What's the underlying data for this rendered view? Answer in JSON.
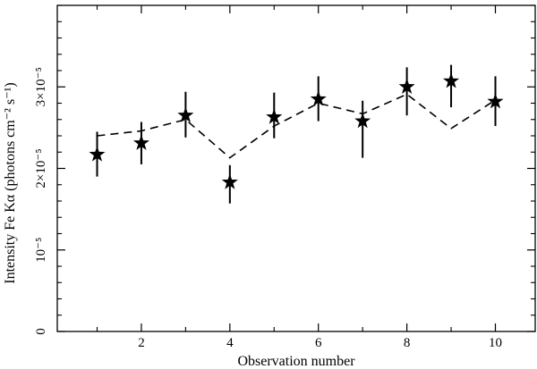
{
  "chart_data": {
    "type": "scatter",
    "title": "",
    "xlabel": "Observation number",
    "ylabel": "Intensity Fe Kα (photons cm⁻² s⁻¹)",
    "xlim": [
      0.1,
      10.9
    ],
    "ylim": [
      0,
      4e-05
    ],
    "x_major_ticks": [
      2,
      4,
      6,
      8,
      10
    ],
    "x_tick_labels": [
      "2",
      "4",
      "6",
      "8",
      "10"
    ],
    "x_minor_ticks": [
      1,
      3,
      5,
      7,
      9
    ],
    "y_major_ticks": [
      0,
      1e-05,
      2e-05,
      3e-05
    ],
    "y_tick_labels": [
      "0",
      "10⁻⁵",
      "2×10⁻⁵",
      "3×10⁻⁵"
    ],
    "y_minor_step": 2e-06,
    "grid": false,
    "series": [
      {
        "style": "stars-with-error-bars",
        "x": [
          1,
          2,
          3,
          4,
          5,
          6,
          7,
          8,
          9,
          10
        ],
        "y": [
          2.17e-05,
          2.31e-05,
          2.65e-05,
          1.83e-05,
          2.63e-05,
          2.85e-05,
          2.58e-05,
          3e-05,
          3.07e-05,
          2.82e-05
        ],
        "y_err_low": [
          1.9e-05,
          2.05e-05,
          2.38e-05,
          1.57e-05,
          2.37e-05,
          2.58e-05,
          2.13e-05,
          2.65e-05,
          2.75e-05,
          2.52e-05
        ],
        "y_err_high": [
          2.45e-05,
          2.57e-05,
          2.94e-05,
          2.04e-05,
          2.93e-05,
          3.13e-05,
          2.83e-05,
          3.24e-05,
          3.27e-05,
          3.13e-05
        ]
      },
      {
        "style": "dashed-line",
        "x": [
          1,
          2,
          3,
          4,
          5,
          6,
          7,
          8,
          9,
          10
        ],
        "y": [
          2.4e-05,
          2.46e-05,
          2.6e-05,
          2.13e-05,
          2.52e-05,
          2.8e-05,
          2.67e-05,
          2.91e-05,
          2.49e-05,
          2.84e-05
        ]
      }
    ]
  }
}
